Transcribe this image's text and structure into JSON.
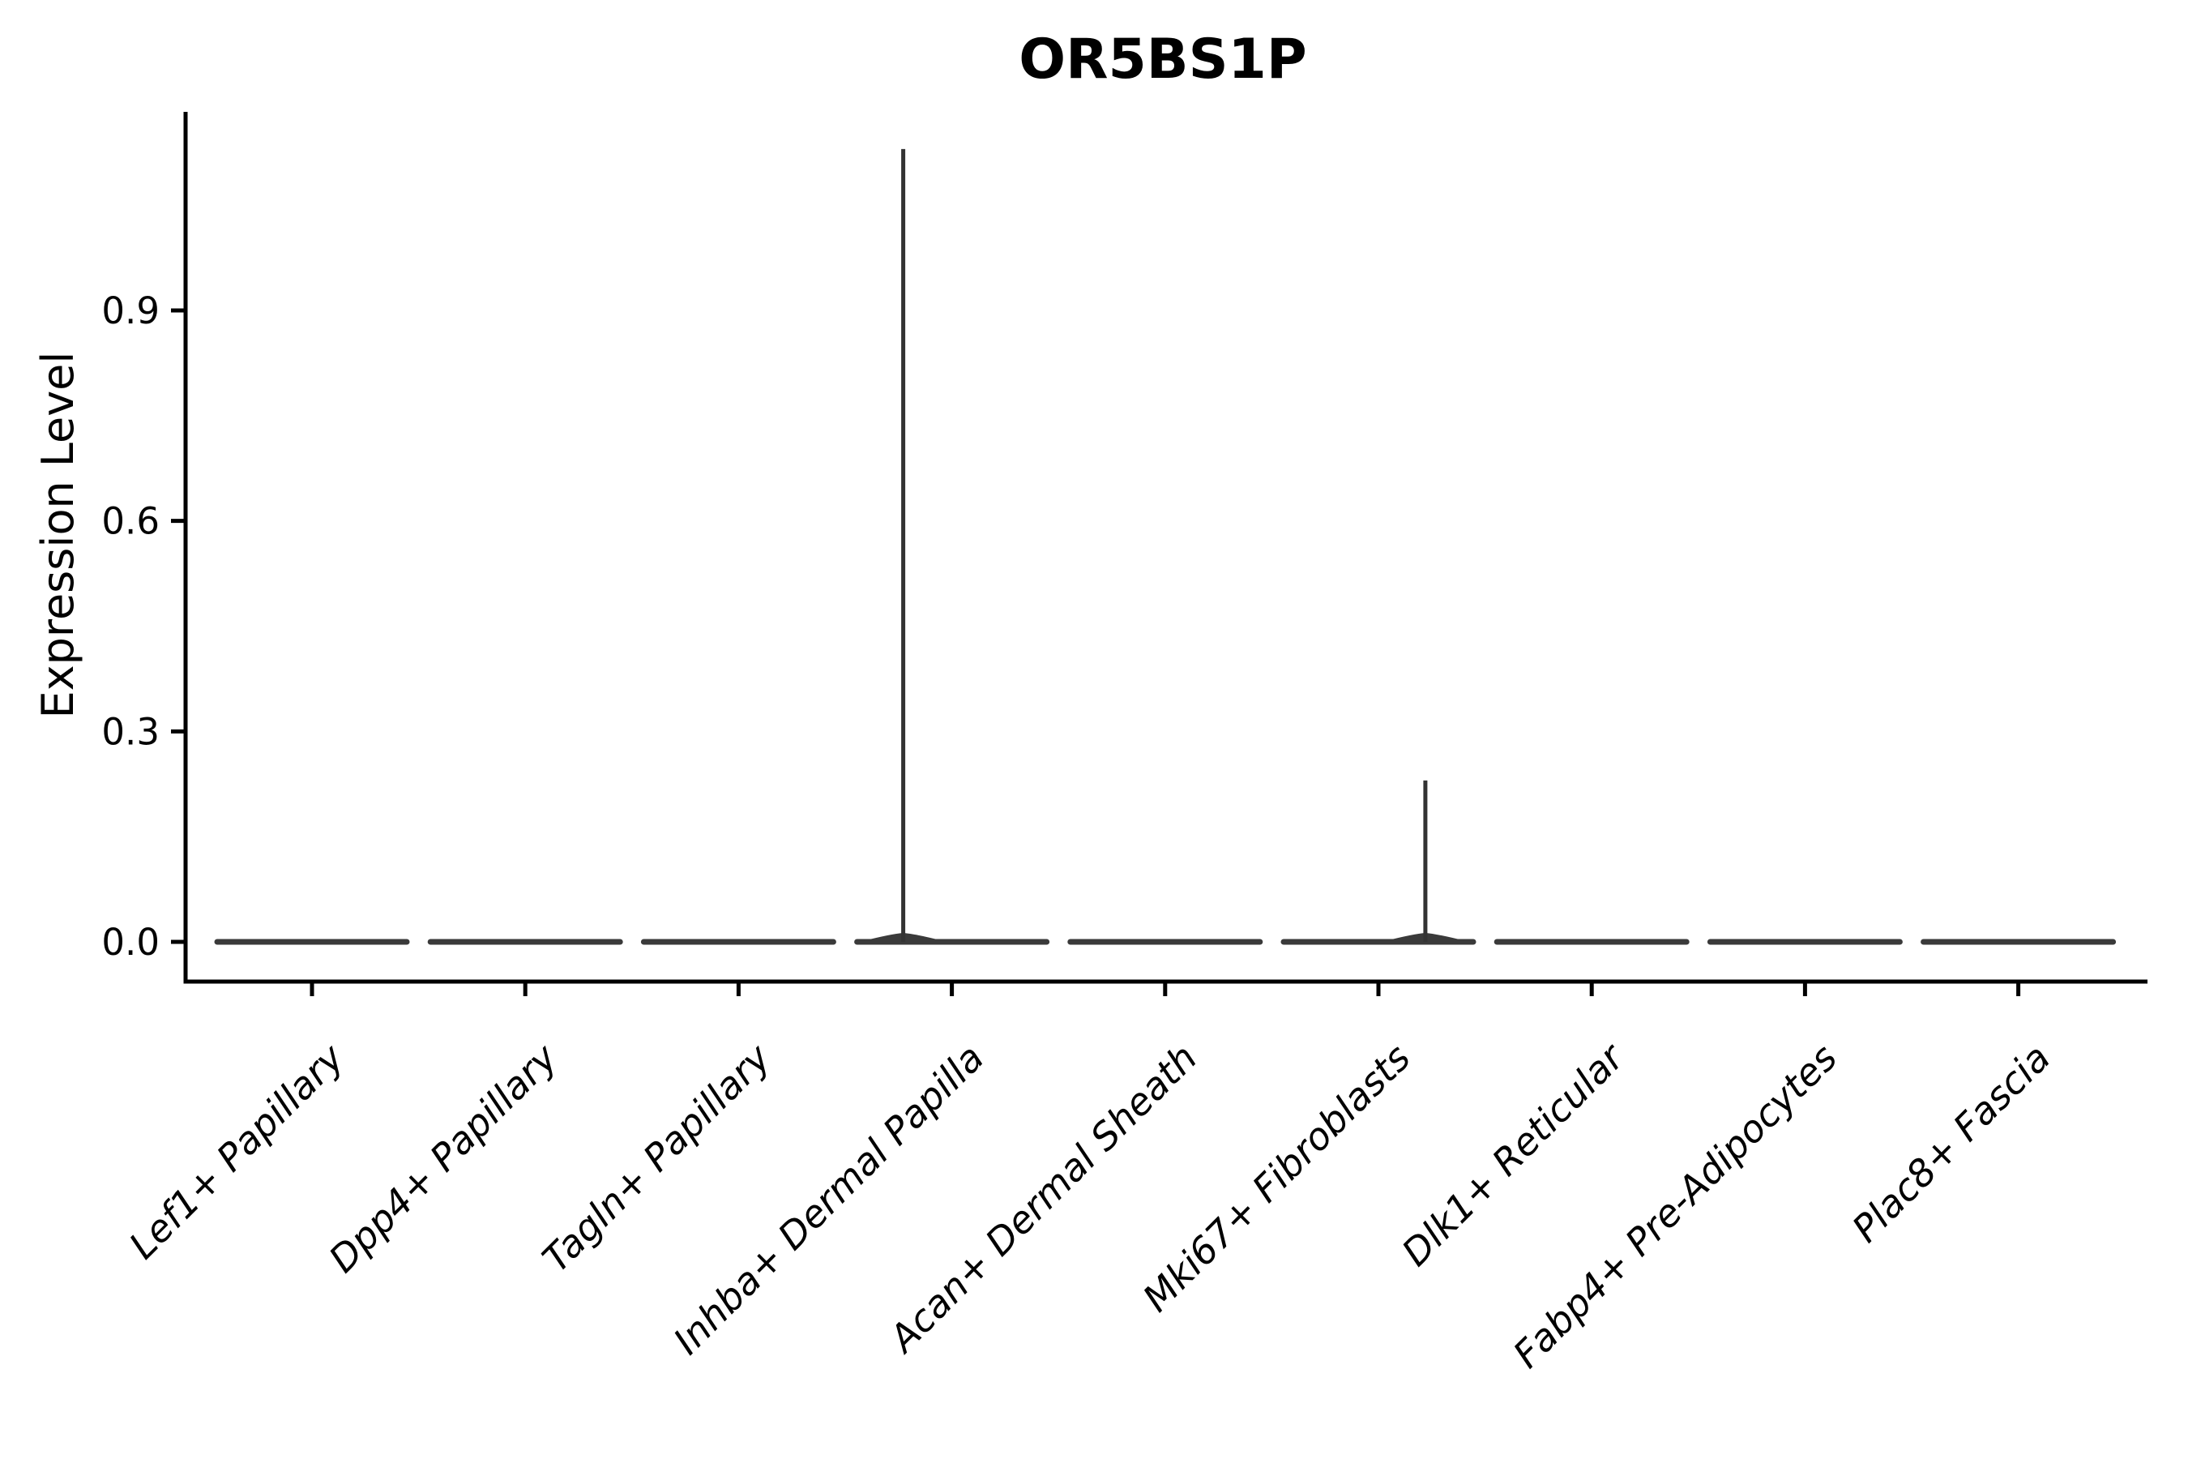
{
  "chart_data": {
    "type": "violin",
    "title": "OR5BS1P",
    "xlabel": "",
    "ylabel": "Expression Level",
    "yticks": [
      "0.0",
      "0.3",
      "0.6",
      "0.9"
    ],
    "ytick_values": [
      0.0,
      0.3,
      0.6,
      0.9
    ],
    "ylim": [
      -0.056,
      1.183
    ],
    "grid": false,
    "legend": "none",
    "categories": [
      "Lef1+ Papillary",
      "Dpp4+ Papillary",
      "Tagln+ Papillary",
      "Inhba+ Dermal Papilla",
      "Acan+ Dermal Sheath",
      "Mki67+ Fibroblasts",
      "Dlk1+ Reticular",
      "Fabp4+ Pre-Adipocytes",
      "Plac8+ Fascia"
    ],
    "violins": [
      {
        "label": "Lef1+ Papillary",
        "max_expression": 0.0,
        "spike": null
      },
      {
        "label": "Dpp4+ Papillary",
        "max_expression": 0.0,
        "spike": null
      },
      {
        "label": "Tagln+ Papillary",
        "max_expression": 0.0,
        "spike": null
      },
      {
        "label": "Inhba+ Dermal Papilla",
        "max_expression": 1.13,
        "spike": {
          "value": 1.13,
          "offset_frac": -0.228
        }
      },
      {
        "label": "Acan+ Dermal Sheath",
        "max_expression": 0.0,
        "spike": null
      },
      {
        "label": "Mki67+ Fibroblasts",
        "max_expression": 0.23,
        "spike": {
          "value": 0.23,
          "offset_frac": 0.22
        }
      },
      {
        "label": "Dlk1+ Reticular",
        "max_expression": 0.0,
        "spike": null
      },
      {
        "label": "Fabp4+ Pre-Adipocytes",
        "max_expression": 0.0,
        "spike": null
      },
      {
        "label": "Plac8+ Fascia",
        "max_expression": 0.0,
        "spike": null
      }
    ],
    "baseline_expression": 0.0,
    "colors": {
      "violin": "#3a3a3a",
      "spike": "#333333",
      "axis": "#000000",
      "text": "#000000"
    }
  }
}
